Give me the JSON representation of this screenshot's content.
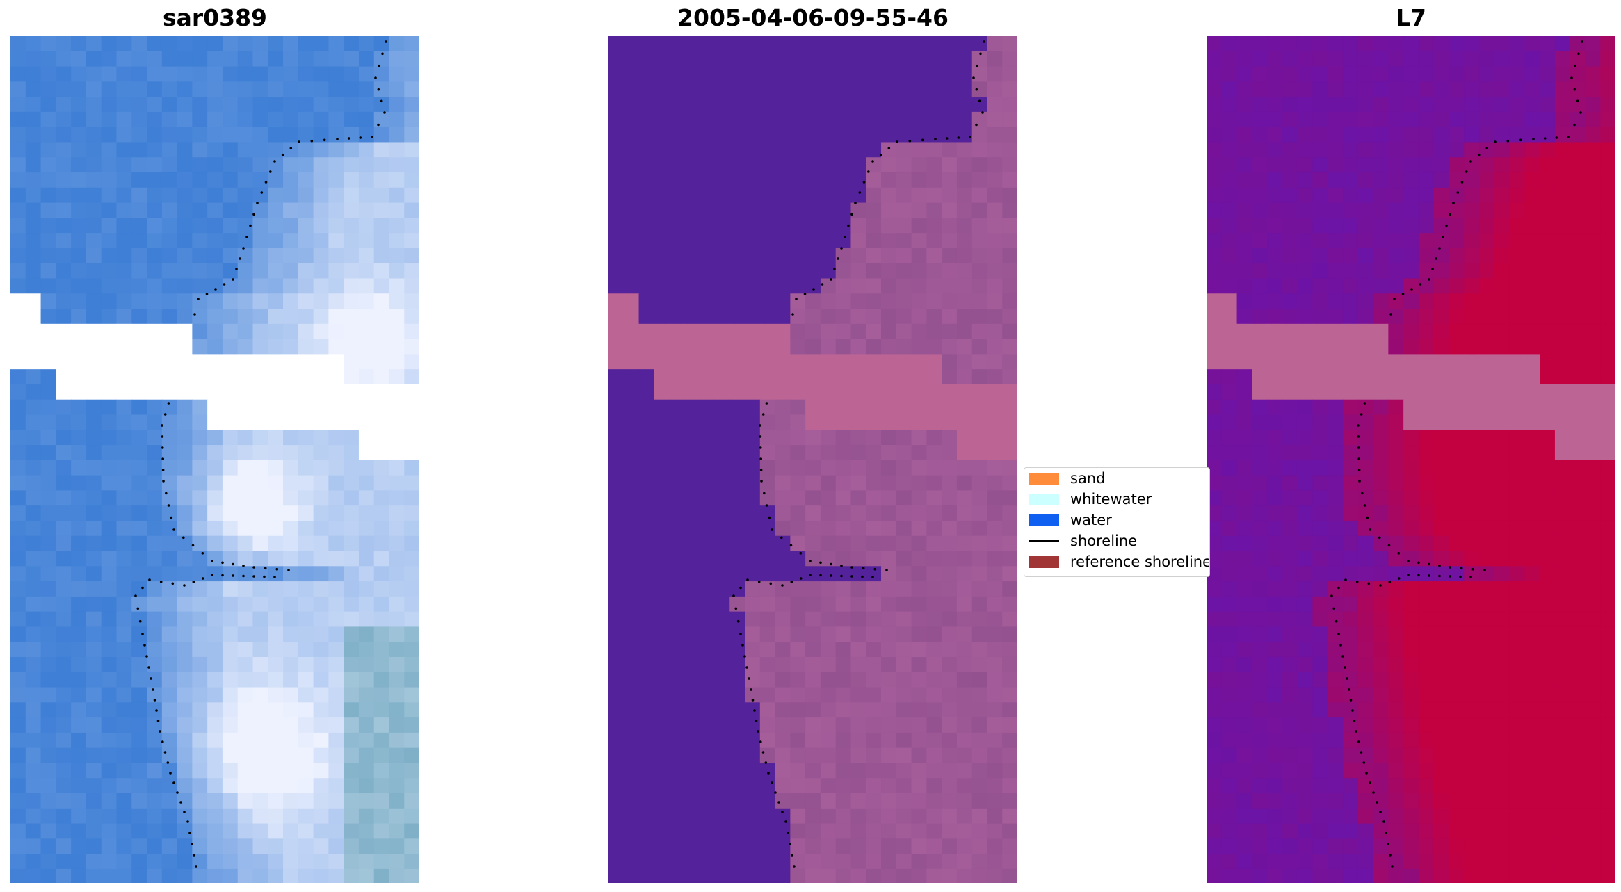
{
  "panels": [
    {
      "title": "sar0389",
      "kind": "rgb"
    },
    {
      "title": "2005-04-06-09-55-46",
      "kind": "classified"
    },
    {
      "title": "L7",
      "kind": "index"
    }
  ],
  "legend": {
    "items": [
      {
        "label": "sand",
        "color": "#ff8c3a",
        "type": "patch"
      },
      {
        "label": "whitewater",
        "color": "#ccffff",
        "type": "patch"
      },
      {
        "label": "water",
        "color": "#0f5ff0",
        "type": "patch"
      },
      {
        "label": "shoreline",
        "color": "#000000",
        "type": "line"
      },
      {
        "label": "reference shoreline",
        "color": "#a13535",
        "type": "patch"
      }
    ]
  },
  "colors": {
    "rgb_water": "#3f7fd6",
    "rgb_bright": "#eef2ff",
    "classified_water": "#54229a",
    "classified_land": "#8c4c8c",
    "classified_nodata": "#bc6494",
    "index_low": "#6a14a8",
    "index_high": "#c8003c",
    "index_nodata": "#bc6494",
    "shoreline_points": "#000000"
  }
}
